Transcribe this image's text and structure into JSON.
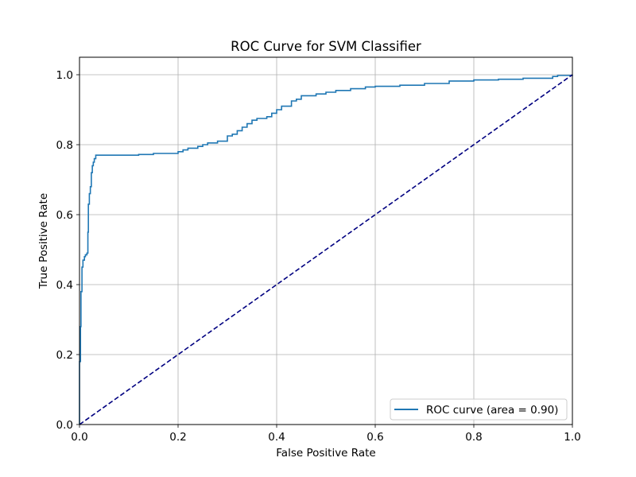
{
  "chart_data": {
    "type": "line",
    "title": "ROC Curve for SVM Classifier",
    "xlabel": "False Positive Rate",
    "ylabel": "True Positive Rate",
    "xlim": [
      0.0,
      1.0
    ],
    "ylim": [
      0.0,
      1.05
    ],
    "xticks": [
      "0.0",
      "0.2",
      "0.4",
      "0.6",
      "0.8",
      "1.0"
    ],
    "yticks": [
      "0.0",
      "0.2",
      "0.4",
      "0.6",
      "0.8",
      "1.0"
    ],
    "grid": true,
    "legend_position": "lower right",
    "series": [
      {
        "name": "ROC curve (area = 0.90)",
        "color": "#1f77b4",
        "style": "solid",
        "points": [
          [
            0.0,
            0.0
          ],
          [
            0.0,
            0.18
          ],
          [
            0.002,
            0.28
          ],
          [
            0.003,
            0.38
          ],
          [
            0.005,
            0.45
          ],
          [
            0.007,
            0.47
          ],
          [
            0.01,
            0.48
          ],
          [
            0.012,
            0.485
          ],
          [
            0.015,
            0.49
          ],
          [
            0.017,
            0.55
          ],
          [
            0.018,
            0.63
          ],
          [
            0.02,
            0.66
          ],
          [
            0.022,
            0.68
          ],
          [
            0.024,
            0.72
          ],
          [
            0.026,
            0.74
          ],
          [
            0.028,
            0.75
          ],
          [
            0.03,
            0.76
          ],
          [
            0.033,
            0.77
          ],
          [
            0.06,
            0.77
          ],
          [
            0.1,
            0.77
          ],
          [
            0.12,
            0.772
          ],
          [
            0.15,
            0.775
          ],
          [
            0.2,
            0.78
          ],
          [
            0.21,
            0.785
          ],
          [
            0.22,
            0.79
          ],
          [
            0.24,
            0.795
          ],
          [
            0.25,
            0.8
          ],
          [
            0.26,
            0.805
          ],
          [
            0.28,
            0.81
          ],
          [
            0.3,
            0.825
          ],
          [
            0.31,
            0.83
          ],
          [
            0.32,
            0.84
          ],
          [
            0.33,
            0.85
          ],
          [
            0.34,
            0.86
          ],
          [
            0.35,
            0.87
          ],
          [
            0.36,
            0.875
          ],
          [
            0.38,
            0.88
          ],
          [
            0.39,
            0.89
          ],
          [
            0.4,
            0.9
          ],
          [
            0.41,
            0.91
          ],
          [
            0.43,
            0.925
          ],
          [
            0.44,
            0.93
          ],
          [
            0.45,
            0.94
          ],
          [
            0.48,
            0.945
          ],
          [
            0.5,
            0.95
          ],
          [
            0.52,
            0.955
          ],
          [
            0.55,
            0.96
          ],
          [
            0.58,
            0.965
          ],
          [
            0.6,
            0.967
          ],
          [
            0.65,
            0.97
          ],
          [
            0.7,
            0.975
          ],
          [
            0.75,
            0.982
          ],
          [
            0.8,
            0.985
          ],
          [
            0.85,
            0.987
          ],
          [
            0.9,
            0.99
          ],
          [
            0.95,
            0.99
          ],
          [
            0.96,
            0.995
          ],
          [
            0.97,
            0.998
          ],
          [
            1.0,
            1.0
          ]
        ]
      },
      {
        "name": "",
        "color": "#000080",
        "style": "dashed",
        "points": [
          [
            0.0,
            0.0
          ],
          [
            1.0,
            1.0
          ]
        ]
      }
    ]
  }
}
